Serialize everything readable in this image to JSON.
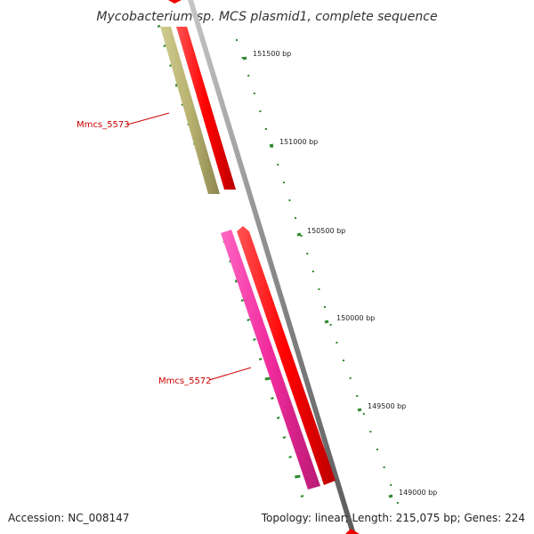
{
  "title": "Mycobacterium sp. MCS plasmid1, complete sequence",
  "footer": {
    "accession": "Accession: NC_008147",
    "summary": "Topology: linear; Length: 215,075 bp; Genes: 224"
  },
  "ruler": {
    "labels": [
      "151500 bp",
      "151000 bp",
      "150500 bp",
      "150000 bp",
      "149500 bp",
      "149000 bp"
    ]
  },
  "genes": [
    {
      "name": "Mmcs_5573",
      "color": "#b5b06a",
      "strand": "forward"
    },
    {
      "name": "Mmcs_5572",
      "color": "#ee2a9a",
      "strand": "forward"
    }
  ],
  "colors": {
    "cds": "#ee0000",
    "backbone": "#888888",
    "ticks": "#2f8a2f",
    "label": "#cc0000"
  }
}
